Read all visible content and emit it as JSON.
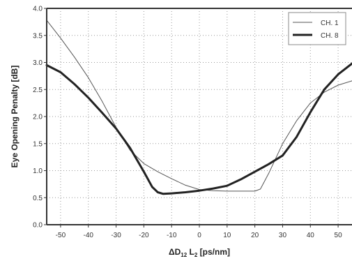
{
  "chart_data": {
    "type": "line",
    "title": "",
    "xlabel": "ΔD12 L2 [ps/nm]",
    "ylabel": "Eye Opening Penalty [dB]",
    "xlim": [
      -55,
      55
    ],
    "ylim": [
      0.0,
      4.0
    ],
    "x_ticks": [
      -50,
      -40,
      -30,
      -20,
      -10,
      0,
      10,
      20,
      30,
      40,
      50
    ],
    "x_tick_labels": [
      "-50",
      "-40",
      "-30",
      "-20",
      "-10",
      "0",
      "10",
      "20",
      "30",
      "40",
      "50"
    ],
    "y_ticks": [
      0.0,
      0.5,
      1.0,
      1.5,
      2.0,
      2.5,
      3.0,
      3.5,
      4.0
    ],
    "y_tick_labels": [
      "0.0",
      "0.5",
      "1.0",
      "1.5",
      "2.0",
      "2.5",
      "3.0",
      "3.5",
      "4.0"
    ],
    "grid": true,
    "grid_style": "dotted",
    "legend_position": "top-right",
    "series": [
      {
        "name": "CH. 1",
        "color": "#555555",
        "line_style": "thin",
        "x": [
          -55,
          -50,
          -45,
          -40,
          -35,
          -30,
          -25,
          -20,
          -15,
          -10,
          -5,
          0,
          5,
          10,
          15,
          20,
          22,
          25,
          30,
          35,
          40,
          45,
          50,
          55
        ],
        "y": [
          3.78,
          3.45,
          3.1,
          2.72,
          2.28,
          1.8,
          1.38,
          1.13,
          0.98,
          0.85,
          0.73,
          0.65,
          0.63,
          0.62,
          0.62,
          0.62,
          0.66,
          0.95,
          1.5,
          1.92,
          2.25,
          2.45,
          2.58,
          2.66
        ]
      },
      {
        "name": "CH. 8",
        "color": "#222222",
        "line_style": "thick",
        "x": [
          -55,
          -50,
          -45,
          -40,
          -35,
          -30,
          -25,
          -20,
          -17,
          -15,
          -13,
          -10,
          -5,
          0,
          5,
          10,
          15,
          20,
          25,
          30,
          35,
          40,
          45,
          50,
          55
        ],
        "y": [
          2.95,
          2.82,
          2.6,
          2.35,
          2.07,
          1.78,
          1.42,
          0.98,
          0.7,
          0.6,
          0.57,
          0.58,
          0.6,
          0.63,
          0.67,
          0.72,
          0.84,
          0.98,
          1.12,
          1.28,
          1.62,
          2.08,
          2.5,
          2.78,
          2.98
        ]
      }
    ]
  }
}
